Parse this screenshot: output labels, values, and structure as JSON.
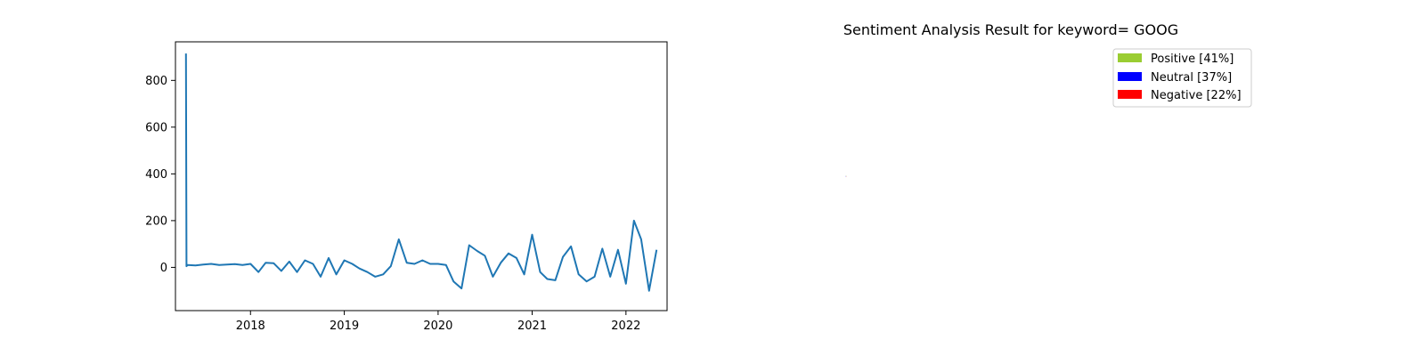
{
  "chart_data": [
    {
      "type": "line",
      "title": "",
      "xlabel": "",
      "ylabel": "",
      "x_range": [
        "2017-03-15",
        "2022-06-10"
      ],
      "ylim": [
        -185,
        965
      ],
      "x_ticks": [
        {
          "date": "2018-01-01",
          "label": "2018"
        },
        {
          "date": "2019-01-01",
          "label": "2019"
        },
        {
          "date": "2020-01-01",
          "label": "2020"
        },
        {
          "date": "2021-01-01",
          "label": "2021"
        },
        {
          "date": "2022-01-01",
          "label": "2022"
        }
      ],
      "y_ticks": [
        0,
        200,
        400,
        600,
        800
      ],
      "grid": false,
      "line_color": "#1f77b4",
      "series": [
        {
          "name": "",
          "x": [
            "2017-04-25",
            "2017-04-27",
            "2017-05-01",
            "2017-06-01",
            "2017-07-01",
            "2017-08-01",
            "2017-09-01",
            "2017-10-01",
            "2017-11-01",
            "2017-12-01",
            "2018-01-01",
            "2018-02-01",
            "2018-03-01",
            "2018-04-01",
            "2018-05-01",
            "2018-06-01",
            "2018-07-01",
            "2018-08-01",
            "2018-09-01",
            "2018-10-01",
            "2018-11-01",
            "2018-12-01",
            "2019-01-01",
            "2019-02-01",
            "2019-03-01",
            "2019-04-01",
            "2019-05-01",
            "2019-06-01",
            "2019-07-01",
            "2019-08-01",
            "2019-09-01",
            "2019-10-01",
            "2019-11-01",
            "2019-12-01",
            "2020-01-01",
            "2020-02-01",
            "2020-03-01",
            "2020-04-01",
            "2020-05-01",
            "2020-06-01",
            "2020-07-01",
            "2020-08-01",
            "2020-09-01",
            "2020-10-01",
            "2020-11-01",
            "2020-12-01",
            "2021-01-01",
            "2021-02-01",
            "2021-03-01",
            "2021-04-01",
            "2021-05-01",
            "2021-06-01",
            "2021-07-01",
            "2021-08-01",
            "2021-09-01",
            "2021-10-01",
            "2021-11-01",
            "2021-12-01",
            "2022-01-01",
            "2022-02-01",
            "2022-03-01",
            "2022-04-01",
            "2022-04-30"
          ],
          "y": [
            915,
            5,
            10,
            8,
            12,
            15,
            10,
            12,
            14,
            10,
            15,
            -20,
            20,
            18,
            -15,
            25,
            -20,
            30,
            15,
            -40,
            40,
            -30,
            30,
            15,
            -5,
            -20,
            -40,
            -30,
            5,
            120,
            20,
            15,
            30,
            15,
            15,
            10,
            -60,
            -90,
            95,
            70,
            50,
            -40,
            20,
            60,
            40,
            -30,
            140,
            -20,
            -50,
            -55,
            45,
            90,
            -30,
            -60,
            -40,
            80,
            -40,
            75,
            -70,
            200,
            120,
            -100,
            75
          ]
        }
      ]
    },
    {
      "type": "pie",
      "title": "Sentiment Analysis Result for keyword= GOOG",
      "slices": [
        {
          "label": "Positive [41%]",
          "value": 41,
          "color": "#9acd32"
        },
        {
          "label": "Neutral [37%]",
          "value": 37,
          "color": "#0000ff"
        },
        {
          "label": "Negative [22%]",
          "value": 22,
          "color": "#ff0000"
        }
      ],
      "legend_placement": "top-right"
    }
  ]
}
